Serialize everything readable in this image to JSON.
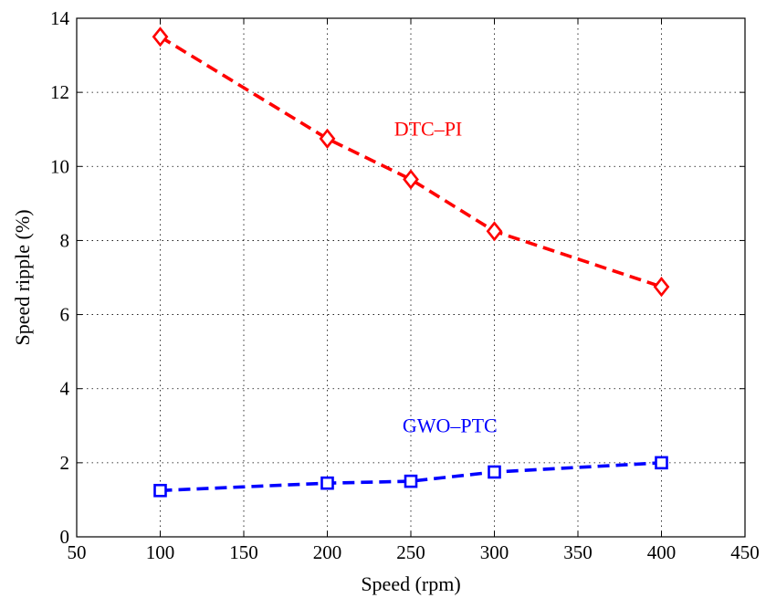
{
  "chart_data": {
    "type": "line",
    "title": "",
    "xlabel": "Speed (rpm)",
    "ylabel": "Speed ripple (%)",
    "xlim": [
      50,
      450
    ],
    "ylim": [
      0,
      14
    ],
    "xticks": [
      50,
      100,
      150,
      200,
      250,
      300,
      350,
      400,
      450
    ],
    "yticks": [
      0,
      2,
      4,
      6,
      8,
      10,
      12,
      14
    ],
    "grid": true,
    "x": [
      100,
      200,
      250,
      300,
      400
    ],
    "series": [
      {
        "name": "DTC–PI",
        "values": [
          13.5,
          10.75,
          9.65,
          8.25,
          6.75
        ],
        "color": "#ff0000",
        "marker": "diamond",
        "line_style": "dashed",
        "label_position": [
          240,
          11
        ]
      },
      {
        "name": "GWO–PTC",
        "values": [
          1.25,
          1.45,
          1.5,
          1.75,
          2.0
        ],
        "color": "#0000ff",
        "marker": "square",
        "line_style": "dashed",
        "label_position": [
          245,
          3
        ]
      }
    ]
  }
}
